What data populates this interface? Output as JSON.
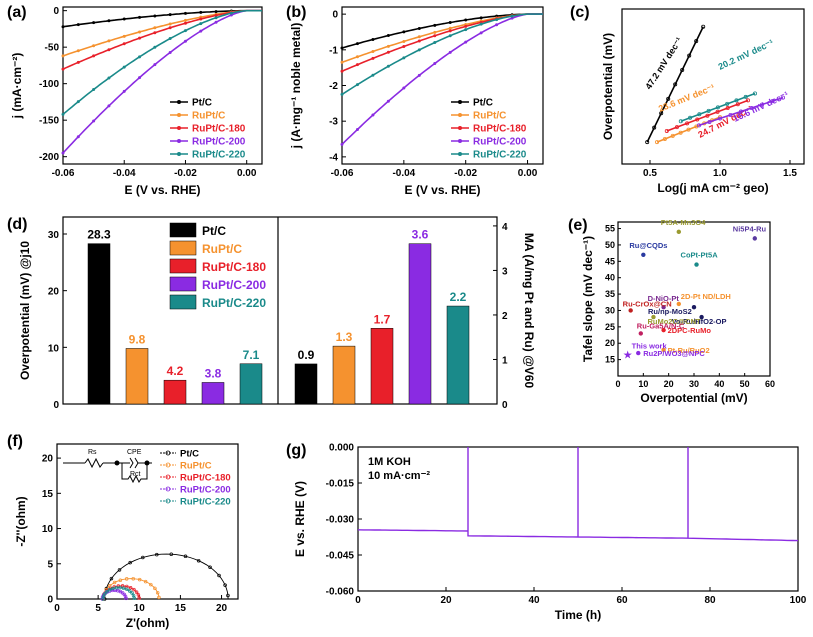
{
  "colors": {
    "ptc": "#000000",
    "ruptc": "#f5922f",
    "r180": "#e8202a",
    "r200": "#8a2be2",
    "r220": "#1a8a8a"
  },
  "panel_labels": [
    "(a)",
    "(b)",
    "(c)",
    "(d)",
    "(e)",
    "(f)",
    "(g)"
  ],
  "legend_names": [
    "Pt/C",
    "RuPt/C",
    "RuPt/C-180",
    "RuPt/C-200",
    "RuPt/C-220"
  ],
  "chart_data": [
    {
      "type": "line",
      "id": "a",
      "xlabel": "E (V vs. RHE)",
      "ylabel": "j (mA·cm⁻²)",
      "xlim": [
        -0.06,
        0.005
      ],
      "ylim": [
        -210,
        5
      ],
      "xticks": [
        "-0.06",
        "-0.04",
        "-0.02",
        "0.00"
      ],
      "yticks": [
        "0",
        "-50",
        "-100",
        "-150",
        "-200"
      ],
      "series": [
        {
          "name": "Pt/C",
          "end": -22,
          "curv": 1.6
        },
        {
          "name": "RuPt/C",
          "end": -62,
          "curv": 1.4
        },
        {
          "name": "RuPt/C-180",
          "end": -80,
          "curv": 1.4
        },
        {
          "name": "RuPt/C-200",
          "end": -195,
          "curv": 1.4
        },
        {
          "name": "RuPt/C-220",
          "end": -142,
          "curv": 1.5
        }
      ]
    },
    {
      "type": "line",
      "id": "b",
      "xlabel": "E (V vs. RHE)",
      "ylabel": "j (A·mg⁻¹ noble metal)",
      "xlim": [
        -0.06,
        0.005
      ],
      "ylim": [
        -4.2,
        0.2
      ],
      "xticks": [
        "-0.06",
        "-0.04",
        "-0.02",
        "0.00"
      ],
      "yticks": [
        "0",
        "-1",
        "-2",
        "-3",
        "-4"
      ],
      "series": [
        {
          "name": "Pt/C",
          "end": -0.95,
          "curv": 1.6
        },
        {
          "name": "RuPt/C",
          "end": -1.35,
          "curv": 1.4
        },
        {
          "name": "RuPt/C-180",
          "end": -1.6,
          "curv": 1.4
        },
        {
          "name": "RuPt/C-200",
          "end": -3.65,
          "curv": 1.4
        },
        {
          "name": "RuPt/C-220",
          "end": -2.25,
          "curv": 1.5
        }
      ]
    },
    {
      "type": "line",
      "id": "c",
      "xlabel": "Log(j mA cm⁻² geo)",
      "ylabel": "Overpotential (mV)",
      "xlim": [
        0.3,
        1.6
      ],
      "xticks": [
        "0.5",
        "1.0",
        "1.5"
      ],
      "series": [
        {
          "name": "Pt/C",
          "slope_label": "47.2 mV dec⁻¹",
          "x": [
            0.48,
            0.88
          ],
          "y": [
            0.1,
            0.93
          ]
        },
        {
          "name": "RuPt/C",
          "slope_label": "23.6 mV dec⁻¹",
          "x": [
            0.55,
            1.0
          ],
          "y": [
            0.1,
            0.28
          ]
        },
        {
          "name": "RuPt/C-180",
          "slope_label": "24.7 mV dec⁻¹",
          "x": [
            0.62,
            1.2
          ],
          "y": [
            0.18,
            0.4
          ]
        },
        {
          "name": "RuPt/C-200",
          "slope_label": "16.6 mV dec⁻¹",
          "x": [
            0.85,
            1.45
          ],
          "y": [
            0.22,
            0.42
          ]
        },
        {
          "name": "RuPt/C-220",
          "slope_label": "20.2 mV dec⁻¹",
          "x": [
            0.72,
            1.25
          ],
          "y": [
            0.25,
            0.45
          ]
        }
      ]
    },
    {
      "type": "bar",
      "id": "d",
      "ylabel_left": "Overpotential (mV) @j10",
      "ylabel_right": "MA (A/mg Pt and Ru) @V60",
      "categories": [
        "Pt/C",
        "RuPt/C",
        "RuPt/C-180",
        "RuPt/C-200",
        "RuPt/C-220"
      ],
      "overpotential": [
        28.3,
        9.8,
        4.2,
        3.8,
        7.1
      ],
      "overpotential_labels": [
        "28.3",
        "9.8",
        "4.2",
        "3.8",
        "7.1"
      ],
      "mass_activity": [
        0.9,
        1.3,
        1.7,
        3.6,
        2.2
      ],
      "mass_activity_labels": [
        "0.9",
        "1.3",
        "1.7",
        "3.6",
        "2.2"
      ],
      "ylim_left": [
        0,
        33
      ],
      "ylim_right": [
        0,
        4.2
      ],
      "yticks_left": [
        "0",
        "10",
        "20",
        "30"
      ],
      "yticks_right": [
        "0",
        "1",
        "2",
        "3",
        "4"
      ]
    },
    {
      "type": "scatter",
      "id": "e",
      "xlabel": "Overpotential (mV)",
      "ylabel": "Tafel slope (mV dec⁻¹)",
      "xlim": [
        0,
        60
      ],
      "ylim": [
        10,
        57
      ],
      "xticks": [
        "0",
        "10",
        "20",
        "30",
        "40",
        "50",
        "60"
      ],
      "yticks": [
        "15",
        "20",
        "25",
        "30",
        "35",
        "40",
        "45",
        "50",
        "55"
      ],
      "points": [
        {
          "label": "Pt5A-Mn3O4",
          "x": 24,
          "y": 54,
          "color": "#9a9a30"
        },
        {
          "label": "Ni5P4-Ru",
          "x": 54,
          "y": 52,
          "color": "#5a3aa0"
        },
        {
          "label": "Ru@CQDs",
          "x": 10,
          "y": 47,
          "color": "#2a3aa0"
        },
        {
          "label": "CoPt-Pt5A",
          "x": 31,
          "y": 44,
          "color": "#1a8a8a"
        },
        {
          "label": "D-NiO-Pt",
          "x": 18,
          "y": 31,
          "color": "#7a2a90"
        },
        {
          "label": "2D-Pt ND/LDH",
          "x": 24,
          "y": 32,
          "color": "#f5922f"
        },
        {
          "label": "Ru-CrOx@CN",
          "x": 5,
          "y": 30,
          "color": "#c02020"
        },
        {
          "label": "Ru/np-MoS2",
          "x": 30,
          "y": 31,
          "color": "#1a1a60"
        },
        {
          "label": "Vo-Ru/HfO2-OP",
          "x": 33,
          "y": 28,
          "color": "#1a1a60"
        },
        {
          "label": "RuMo2C@CNT",
          "x": 14,
          "y": 28,
          "color": "#9a9a30"
        },
        {
          "label": "2DPC-RuMo",
          "x": 18,
          "y": 24,
          "color": "#e8202a"
        },
        {
          "label": "Ru-Ga5A/N-C",
          "x": 9,
          "y": 23,
          "color": "#c02060"
        },
        {
          "label": "Pt-Ru/RuO2",
          "x": 18,
          "y": 18,
          "color": "#f5922f"
        },
        {
          "label": "Ru2P/WO3@NPC",
          "x": 8,
          "y": 17,
          "color": "#8a2be2"
        },
        {
          "label": "This work",
          "x": 3.8,
          "y": 16.6,
          "color": "#8a2be2"
        }
      ]
    },
    {
      "type": "line",
      "id": "f",
      "xlabel": "Z'(ohm)",
      "ylabel": "-Z''(ohm)",
      "xlim": [
        0,
        22
      ],
      "ylim": [
        0,
        22
      ],
      "xticks": [
        "0",
        "5",
        "10",
        "15",
        "20"
      ],
      "yticks": [
        "0",
        "5",
        "10",
        "15",
        "20"
      ],
      "series": [
        {
          "name": "Pt/C",
          "start": 5.8,
          "end": 20.8
        },
        {
          "name": "RuPt/C",
          "start": 5.6,
          "end": 12.4
        },
        {
          "name": "RuPt/C-180",
          "start": 5.6,
          "end": 10.0
        },
        {
          "name": "RuPt/C-200",
          "start": 5.5,
          "end": 8.4
        },
        {
          "name": "RuPt/C-220",
          "start": 5.6,
          "end": 9.4
        }
      ]
    },
    {
      "type": "line",
      "id": "g",
      "xlabel": "Time (h)",
      "ylabel": "E vs. RHE (V)",
      "xlim": [
        0,
        100
      ],
      "ylim": [
        -0.06,
        0.0
      ],
      "xticks": [
        "0",
        "20",
        "40",
        "60",
        "80",
        "100"
      ],
      "yticks": [
        "0.000",
        "-0.015",
        "-0.030",
        "-0.045",
        "-0.060"
      ],
      "annotation1": "1M KOH",
      "annotation2": "10 mA·cm⁻²",
      "series": [
        {
          "name": "RuPt/C-200",
          "segments": [
            [
              0,
              25,
              -0.0345,
              -0.035
            ],
            [
              25,
              50,
              -0.037,
              -0.0375
            ],
            [
              50,
              75,
              -0.0375,
              -0.038
            ],
            [
              75,
              100,
              -0.038,
              -0.039
            ]
          ]
        }
      ]
    }
  ],
  "circuit": {
    "r1": "Rs",
    "cpe": "CPE",
    "rct": "Rct"
  }
}
